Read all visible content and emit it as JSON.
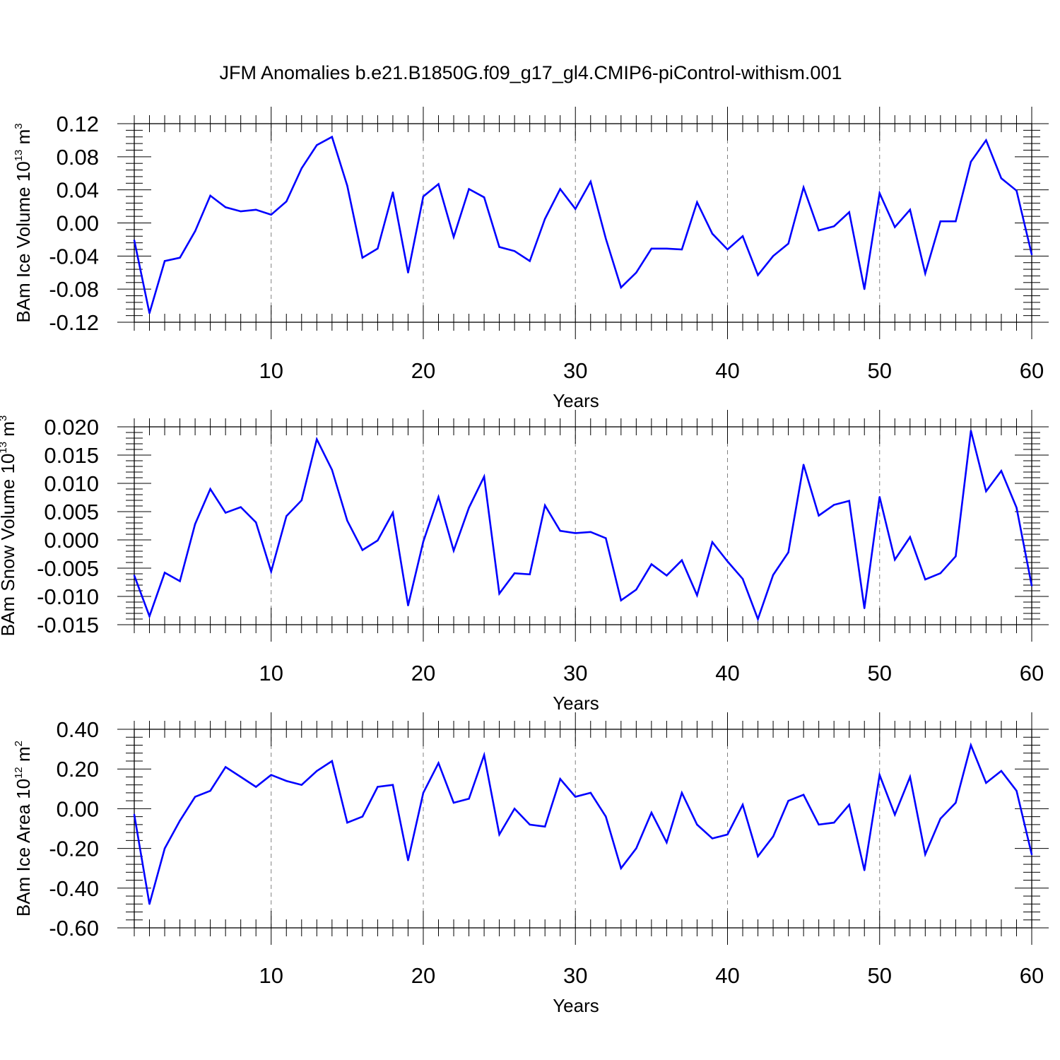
{
  "title": "JFM Anomalies b.e21.B1850G.f09_g17_gl4.CMIP6-piControl-withism.001",
  "chart_data": [
    {
      "type": "line",
      "name": "ice-volume",
      "xlabel": "Years",
      "ylabel": {
        "base": "BAm Ice Volume 10",
        "exp": "13",
        "unit": "m",
        "unit_exp": "3"
      },
      "xlim": [
        1,
        60
      ],
      "ylim": [
        -0.12,
        0.12
      ],
      "xticks": [
        10,
        20,
        30,
        40,
        50,
        60
      ],
      "xtick_labels": [
        "10",
        "20",
        "30",
        "40",
        "50",
        "60"
      ],
      "yticks": [
        -0.12,
        -0.08,
        -0.04,
        0.0,
        0.04,
        0.08,
        0.12
      ],
      "ytick_labels": [
        "-0.12",
        "-0.08",
        "-0.04",
        "0.00",
        "0.04",
        "0.08",
        "0.12"
      ],
      "grid": "dashed vertical at major x ticks",
      "color": "#0000ff",
      "series": [
        {
          "name": "BAm Ice Volume",
          "x": [
            1,
            2,
            3,
            4,
            5,
            6,
            7,
            8,
            9,
            10,
            11,
            12,
            13,
            14,
            15,
            16,
            17,
            18,
            19,
            20,
            21,
            22,
            23,
            24,
            25,
            26,
            27,
            28,
            29,
            30,
            31,
            32,
            33,
            34,
            35,
            36,
            37,
            38,
            39,
            40,
            41,
            42,
            43,
            44,
            45,
            46,
            47,
            48,
            49,
            50,
            51,
            52,
            53,
            54,
            55,
            56,
            57,
            58,
            59,
            60
          ],
          "values": [
            -0.021,
            -0.109,
            -0.046,
            -0.042,
            -0.01,
            0.033,
            0.019,
            0.014,
            0.016,
            0.01,
            0.026,
            0.066,
            0.094,
            0.104,
            0.045,
            -0.042,
            -0.031,
            0.037,
            -0.06,
            0.032,
            0.047,
            -0.017,
            0.041,
            0.031,
            -0.029,
            -0.034,
            -0.046,
            0.005,
            0.041,
            0.017,
            0.05,
            -0.019,
            -0.078,
            -0.06,
            -0.031,
            -0.031,
            -0.032,
            0.025,
            -0.013,
            -0.032,
            -0.016,
            -0.063,
            -0.04,
            -0.025,
            0.043,
            -0.009,
            -0.004,
            0.013,
            -0.08,
            0.036,
            -0.005,
            0.016,
            -0.061,
            0.002,
            0.002,
            0.074,
            0.1,
            0.054,
            0.039,
            -0.038
          ]
        }
      ]
    },
    {
      "type": "line",
      "name": "snow-volume",
      "xlabel": "Years",
      "ylabel": {
        "base": "BAm Snow Volume 10",
        "exp": "13",
        "unit": "m",
        "unit_exp": "3"
      },
      "xlim": [
        1,
        60
      ],
      "ylim": [
        -0.015,
        0.02
      ],
      "xticks": [
        10,
        20,
        30,
        40,
        50,
        60
      ],
      "xtick_labels": [
        "10",
        "20",
        "30",
        "40",
        "50",
        "60"
      ],
      "yticks": [
        -0.015,
        -0.01,
        -0.005,
        0.0,
        0.005,
        0.01,
        0.015,
        0.02
      ],
      "ytick_labels": [
        "-0.015",
        "-0.010",
        "-0.005",
        "0.000",
        "0.005",
        "0.010",
        "0.015",
        "0.020"
      ],
      "grid": "dashed vertical at major x ticks",
      "color": "#0000ff",
      "series": [
        {
          "name": "BAm Snow Volume",
          "x": [
            1,
            2,
            3,
            4,
            5,
            6,
            7,
            8,
            9,
            10,
            11,
            12,
            13,
            14,
            15,
            16,
            17,
            18,
            19,
            20,
            21,
            22,
            23,
            24,
            25,
            26,
            27,
            28,
            29,
            30,
            31,
            32,
            33,
            34,
            35,
            36,
            37,
            38,
            39,
            40,
            41,
            42,
            43,
            44,
            45,
            46,
            47,
            48,
            49,
            50,
            51,
            52,
            53,
            54,
            55,
            56,
            57,
            58,
            59,
            60
          ],
          "values": [
            -0.0063,
            -0.0135,
            -0.0058,
            -0.0073,
            0.0028,
            0.009,
            0.0048,
            0.0058,
            0.0031,
            -0.0056,
            0.0042,
            0.007,
            0.0178,
            0.0124,
            0.0034,
            -0.0018,
            -0.0001,
            0.0048,
            -0.0116,
            -0.0003,
            0.0076,
            -0.0019,
            0.0057,
            0.0112,
            -0.0095,
            -0.0059,
            -0.0061,
            0.0061,
            0.0016,
            0.0012,
            0.0014,
            0.0003,
            -0.0107,
            -0.0088,
            -0.0043,
            -0.0063,
            -0.0036,
            -0.0098,
            -0.0004,
            -0.0038,
            -0.0069,
            -0.014,
            -0.0062,
            -0.0022,
            0.0133,
            0.0043,
            0.0062,
            0.0069,
            -0.0121,
            0.0076,
            -0.0035,
            0.0005,
            -0.007,
            -0.0059,
            -0.0029,
            0.0193,
            0.0086,
            0.0122,
            0.0057,
            -0.0081
          ]
        }
      ]
    },
    {
      "type": "line",
      "name": "ice-area",
      "xlabel": "Years",
      "ylabel": {
        "base": "BAm Ice Area 10",
        "exp": "12",
        "unit": "m",
        "unit_exp": "2"
      },
      "xlim": [
        1,
        60
      ],
      "ylim": [
        -0.6,
        0.4
      ],
      "xticks": [
        10,
        20,
        30,
        40,
        50,
        60
      ],
      "xtick_labels": [
        "10",
        "20",
        "30",
        "40",
        "50",
        "60"
      ],
      "yticks": [
        -0.6,
        -0.4,
        -0.2,
        0.0,
        0.2,
        0.4
      ],
      "ytick_labels": [
        "-0.60",
        "-0.40",
        "-0.20",
        "0.00",
        "0.20",
        "0.40"
      ],
      "grid": "dashed vertical at major x ticks",
      "color": "#0000ff",
      "series": [
        {
          "name": "BAm Ice Area",
          "x": [
            1,
            2,
            3,
            4,
            5,
            6,
            7,
            8,
            9,
            10,
            11,
            12,
            13,
            14,
            15,
            16,
            17,
            18,
            19,
            20,
            21,
            22,
            23,
            24,
            25,
            26,
            27,
            28,
            29,
            30,
            31,
            32,
            33,
            34,
            35,
            36,
            37,
            38,
            39,
            40,
            41,
            42,
            43,
            44,
            45,
            46,
            47,
            48,
            49,
            50,
            51,
            52,
            53,
            54,
            55,
            56,
            57,
            58,
            59,
            60
          ],
          "values": [
            -0.03,
            -0.48,
            -0.2,
            -0.06,
            0.06,
            0.09,
            0.21,
            0.16,
            0.11,
            0.17,
            0.14,
            0.12,
            0.19,
            0.24,
            -0.07,
            -0.04,
            0.11,
            0.12,
            -0.26,
            0.08,
            0.23,
            0.03,
            0.05,
            0.27,
            -0.13,
            0.0,
            -0.08,
            -0.09,
            0.15,
            0.06,
            0.08,
            -0.04,
            -0.3,
            -0.2,
            -0.02,
            -0.17,
            0.08,
            -0.08,
            -0.15,
            -0.13,
            0.02,
            -0.24,
            -0.14,
            0.04,
            0.07,
            -0.08,
            -0.07,
            0.02,
            -0.31,
            0.17,
            -0.03,
            0.16,
            -0.23,
            -0.05,
            0.03,
            0.32,
            0.13,
            0.19,
            0.09,
            -0.23
          ]
        }
      ]
    }
  ]
}
